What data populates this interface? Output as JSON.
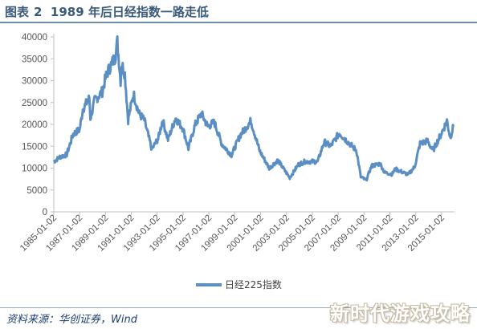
{
  "header": {
    "label": "图表",
    "number": "2",
    "title": "1989 年后日经指数一路走低"
  },
  "source_text": "资料来源：华创证券，Wind",
  "watermark": "新时代游戏攻略",
  "colors": {
    "series": "#5b8fc4",
    "axis": "#bfbfbf",
    "title": "#3a5a7a"
  },
  "chart_data": {
    "type": "line",
    "title": "1989 年后日经指数一路走低",
    "xlabel": "",
    "ylabel": "",
    "ylim": [
      0,
      40000
    ],
    "yticks": [
      0,
      5000,
      10000,
      15000,
      20000,
      25000,
      30000,
      35000,
      40000
    ],
    "xticks": [
      "1985-01-02",
      "1987-01-02",
      "1989-01-02",
      "1991-01-02",
      "1993-01-02",
      "1995-01-02",
      "1997-01-02",
      "1999-01-02",
      "2001-01-02",
      "2003-01-02",
      "2005-01-02",
      "2007-01-02",
      "2009-01-02",
      "2011-01-02",
      "2013-01-02",
      "2015-01-02"
    ],
    "legend": "bottom-center",
    "grid": false,
    "series": [
      {
        "name": "日经225指数",
        "points": [
          [
            "1985-01",
            11500
          ],
          [
            "1985-07",
            12600
          ],
          [
            "1986-01",
            13100
          ],
          [
            "1986-07",
            17800
          ],
          [
            "1987-01",
            18800
          ],
          [
            "1987-04",
            23500
          ],
          [
            "1987-10",
            26000
          ],
          [
            "1987-11",
            21500
          ],
          [
            "1988-03",
            25500
          ],
          [
            "1988-10",
            27500
          ],
          [
            "1989-02",
            31500
          ],
          [
            "1989-06",
            33500
          ],
          [
            "1989-10",
            35500
          ],
          [
            "1989-12",
            38900
          ],
          [
            "1990-03",
            30000
          ],
          [
            "1990-04",
            34000
          ],
          [
            "1990-07",
            31500
          ],
          [
            "1990-10",
            21000
          ],
          [
            "1991-03",
            27000
          ],
          [
            "1991-08",
            22500
          ],
          [
            "1992-01",
            21000
          ],
          [
            "1992-08",
            14300
          ],
          [
            "1993-02",
            16800
          ],
          [
            "1993-06",
            21000
          ],
          [
            "1993-11",
            16500
          ],
          [
            "1994-06",
            21500
          ],
          [
            "1995-01",
            19000
          ],
          [
            "1995-06",
            14500
          ],
          [
            "1995-12",
            19800
          ],
          [
            "1996-06",
            22500
          ],
          [
            "1996-12",
            19500
          ],
          [
            "1997-06",
            20500
          ],
          [
            "1998-01",
            15500
          ],
          [
            "1998-10",
            13000
          ],
          [
            "1999-06",
            17500
          ],
          [
            "2000-04",
            20800
          ],
          [
            "2000-12",
            14000
          ],
          [
            "2001-09",
            10000
          ],
          [
            "2002-05",
            11800
          ],
          [
            "2003-04",
            7800
          ],
          [
            "2003-12",
            10800
          ],
          [
            "2004-06",
            11500
          ],
          [
            "2005-06",
            11500
          ],
          [
            "2005-12",
            16000
          ],
          [
            "2006-06",
            15000
          ],
          [
            "2007-02",
            18000
          ],
          [
            "2007-08",
            16500
          ],
          [
            "2008-06",
            14000
          ],
          [
            "2008-10",
            8000
          ],
          [
            "2009-03",
            7200
          ],
          [
            "2009-08",
            10500
          ],
          [
            "2010-04",
            11000
          ],
          [
            "2010-08",
            9000
          ],
          [
            "2011-03",
            8600
          ],
          [
            "2011-06",
            9800
          ],
          [
            "2012-06",
            8500
          ],
          [
            "2012-12",
            10300
          ],
          [
            "2013-05",
            15600
          ],
          [
            "2013-12",
            16200
          ],
          [
            "2014-05",
            14000
          ],
          [
            "2014-12",
            17500
          ],
          [
            "2015-06",
            20800
          ],
          [
            "2015-09",
            17000
          ],
          [
            "2015-12",
            19500
          ]
        ]
      }
    ]
  }
}
